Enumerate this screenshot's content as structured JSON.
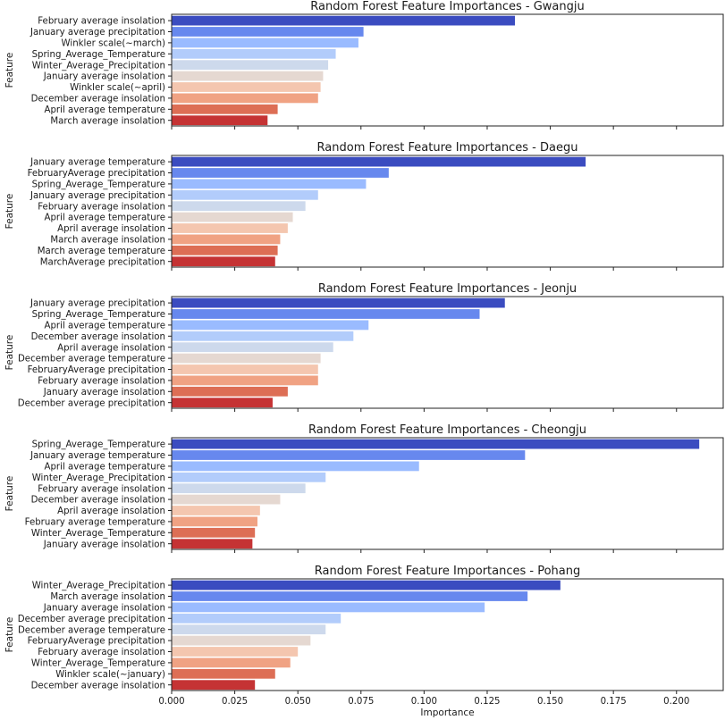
{
  "chart_data": {
    "type": "bar",
    "orientation": "horizontal",
    "shared_xaxis": {
      "label": "Importance",
      "range": [
        0.0,
        0.2185
      ],
      "ticks": [
        0.0,
        0.025,
        0.05,
        0.075,
        0.1,
        0.125,
        0.15,
        0.175,
        0.2
      ],
      "tick_labels": [
        "0.000",
        "0.025",
        "0.050",
        "0.075",
        "0.100",
        "0.125",
        "0.150",
        "0.175",
        "0.200"
      ]
    },
    "ylabel": "Feature",
    "palette": [
      "#3b4cc0",
      "#6788ee",
      "#9abbff",
      "#b2ccfb",
      "#cdd9ec",
      "#e5d8d1",
      "#f4c6af",
      "#f0a283",
      "#dd6e55",
      "#c53334"
    ],
    "charts": [
      {
        "title": "Random Forest Feature Importances - Gwangju",
        "categories": [
          "February average insolation",
          "January average precipitation",
          "Winkler scale(~march)",
          "Spring_Average_Temperature",
          "Winter_Average_Precipitation",
          "January average insolation",
          "Winkler scale(~april)",
          "December average insolation",
          "April average temperature",
          "March average insolation"
        ],
        "values": [
          0.136,
          0.076,
          0.074,
          0.065,
          0.062,
          0.06,
          0.059,
          0.058,
          0.042,
          0.038
        ]
      },
      {
        "title": "Random Forest Feature Importances - Daegu",
        "categories": [
          "January average temperature",
          "FebruaryAverage precipitation",
          "Spring_Average_Temperature",
          "January average precipitation",
          "February average insolation",
          "April average temperature",
          "April average insolation",
          "March average insolation",
          "March average temperature",
          "MarchAverage precipitation"
        ],
        "values": [
          0.164,
          0.086,
          0.077,
          0.058,
          0.053,
          0.048,
          0.046,
          0.043,
          0.042,
          0.041
        ]
      },
      {
        "title": "Random Forest Feature Importances - Jeonju",
        "categories": [
          "January average precipitation",
          "Spring_Average_Temperature",
          "April average temperature",
          "December average insolation",
          "April average insolation",
          "December average temperature",
          "FebruaryAverage precipitation",
          "February average insolation",
          "January average insolation",
          "December average precipitation"
        ],
        "values": [
          0.132,
          0.122,
          0.078,
          0.072,
          0.064,
          0.059,
          0.058,
          0.058,
          0.046,
          0.04
        ]
      },
      {
        "title": "Random Forest Feature Importances - Cheongju",
        "categories": [
          "Spring_Average_Temperature",
          "January average temperature",
          "April average temperature",
          "Winter_Average_Precipitation",
          "February average insolation",
          "December average insolation",
          "April average insolation",
          "February average temperature",
          "Winter_Average_Temperature",
          "January average insolation"
        ],
        "values": [
          0.209,
          0.14,
          0.098,
          0.061,
          0.053,
          0.043,
          0.035,
          0.034,
          0.033,
          0.032
        ]
      },
      {
        "title": "Random Forest Feature Importances - Pohang",
        "categories": [
          "Winter_Average_Precipitation",
          "March average insolation",
          "January average insolation",
          "December average precipitation",
          "December average temperature",
          "FebruaryAverage precipitation",
          "February average insolation",
          "Winter_Average_Temperature",
          "Winkler scale(~january)",
          "December average insolation"
        ],
        "values": [
          0.154,
          0.141,
          0.124,
          0.067,
          0.061,
          0.055,
          0.05,
          0.047,
          0.041,
          0.033
        ]
      }
    ]
  }
}
